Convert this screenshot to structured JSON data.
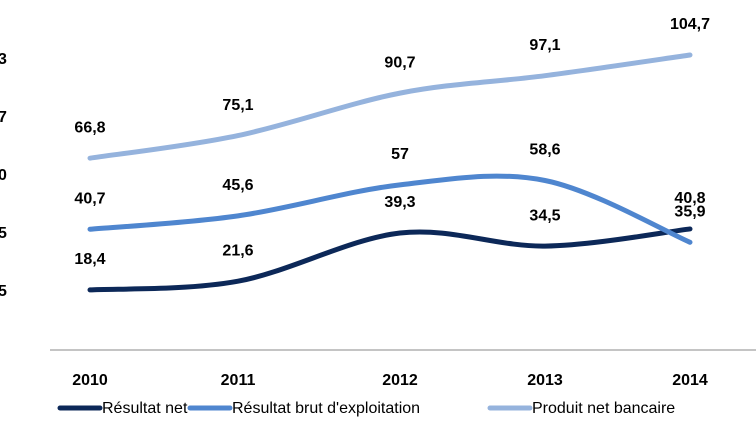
{
  "chart_data": {
    "type": "line",
    "categories": [
      "2010",
      "2011",
      "2012",
      "2013",
      "2014"
    ],
    "series": [
      {
        "name": "Résultat net",
        "color": "#0c2858",
        "values": [
          18.4,
          21.6,
          39.3,
          34.5,
          40.8
        ],
        "value_labels": [
          "18,4",
          "21,6",
          "39,3",
          "34,5",
          "40,8"
        ]
      },
      {
        "name": "Résultat brut d'exploitation",
        "color": "#4f86cf",
        "values": [
          40.7,
          45.6,
          57,
          58.6,
          35.9
        ],
        "value_labels": [
          "40,7",
          "45,6",
          "57",
          "58,6",
          "35,9"
        ]
      },
      {
        "name": "Produit net bancaire",
        "color": "#95b3dd",
        "values": [
          66.8,
          75.1,
          90.7,
          97.1,
          104.7
        ],
        "value_labels": [
          "66,8",
          "75,1",
          "90,7",
          "97,1",
          "104,7"
        ]
      }
    ],
    "clipped_labels": [
      "3",
      "7",
      "0",
      "5",
      "5"
    ],
    "legend": "bottom"
  }
}
